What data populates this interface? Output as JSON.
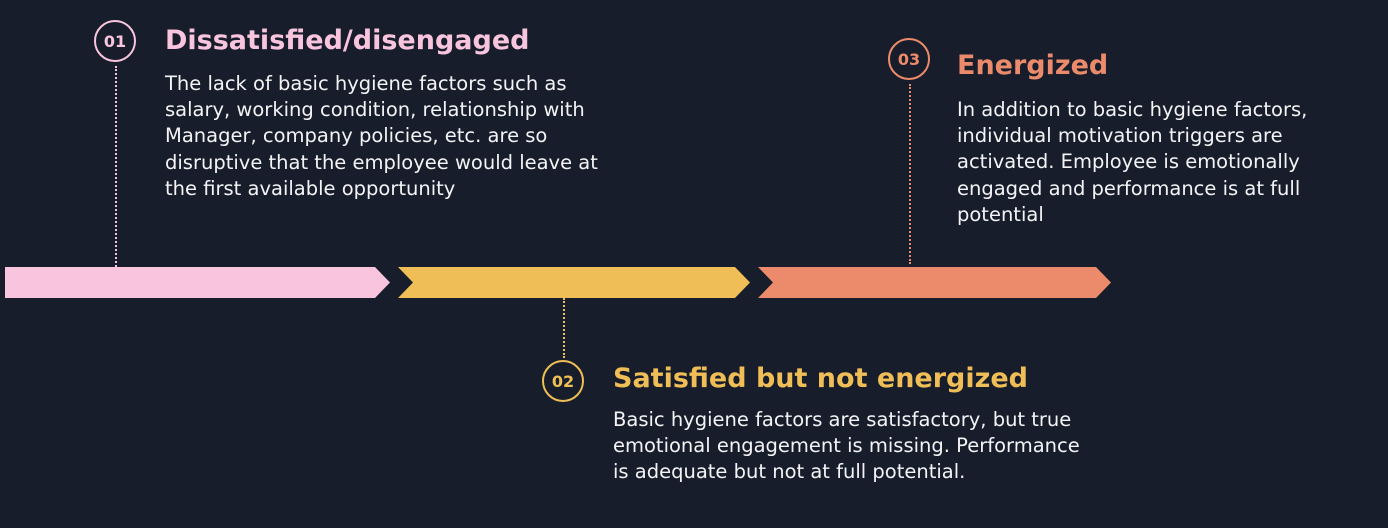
{
  "colors": {
    "background": "#171d2a",
    "stage1": "#f9c5de",
    "stage2": "#f0be56",
    "stage3": "#ec8b6b",
    "text": "#f4f4f6"
  },
  "steps": [
    {
      "number": "01",
      "title": "Dissatisfied/disengaged",
      "description": "The lack of basic hygiene factors such as salary, working condition, relationship with Manager, company policies, etc. are so disruptive that the employee would leave at the first available opportunity"
    },
    {
      "number": "02",
      "title": "Satisfied but not energized",
      "description": "Basic hygiene factors are satisfactory, but true emotional engagement is missing. Performance is adequate but not at full potential."
    },
    {
      "number": "03",
      "title": "Energized",
      "description": "In addition to basic hygiene factors, individual motivation triggers are activated. Employee is emotionally engaged and performance is at full potential"
    }
  ]
}
